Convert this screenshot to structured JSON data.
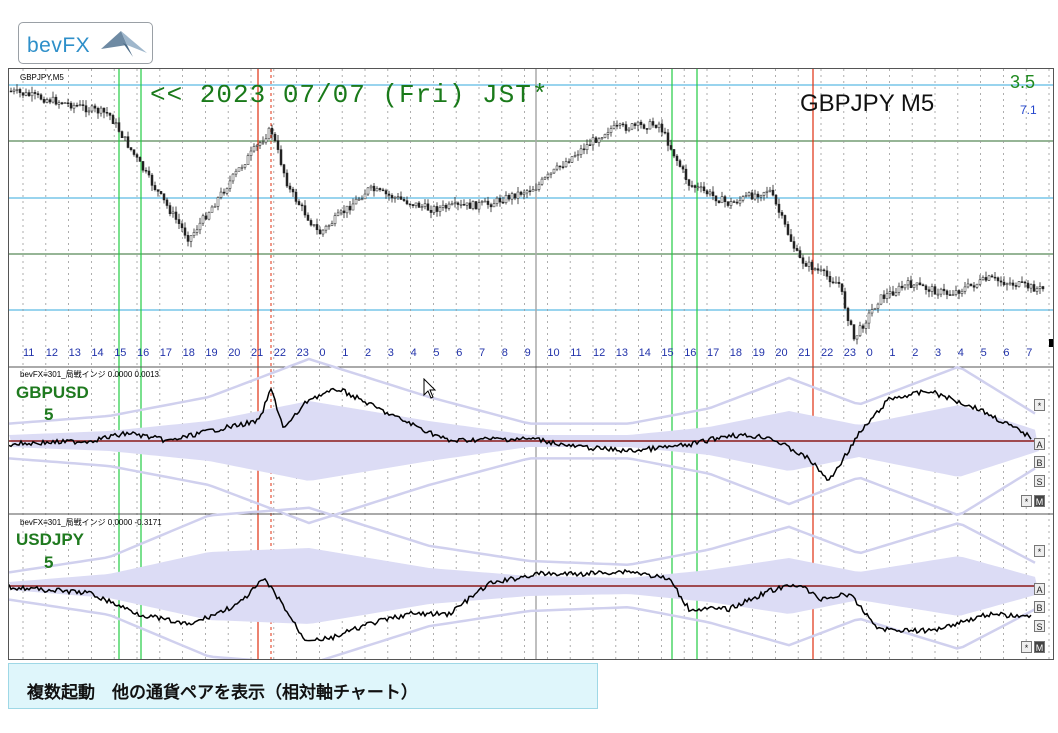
{
  "logo": {
    "text": "bevFX"
  },
  "main_chart": {
    "symbol_label": "GBPJPY,M5",
    "date_banner": "<<  2023 07/07 (Fri) JST*",
    "symbol_big": "GBPJPY  M5",
    "top_value": "3.5",
    "second_value": "7.1",
    "hour_labels": [
      "11",
      "12",
      "13",
      "14",
      "15",
      "16",
      "17",
      "18",
      "19",
      "20",
      "21",
      "22",
      "23",
      "0",
      "1",
      "2",
      "3",
      "4",
      "5",
      "6",
      "7",
      "8",
      "9",
      "10",
      "11",
      "12",
      "13",
      "14",
      "15",
      "16",
      "17",
      "18",
      "19",
      "20",
      "21",
      "22",
      "23",
      "0",
      "1",
      "2",
      "3",
      "4",
      "5",
      "6",
      "7"
    ]
  },
  "sub_pane_1": {
    "header": "bevFX≡301_局戦インジ 0.0000 0.0013",
    "pair": "GBPUSD",
    "period": "5",
    "buttons": [
      "*",
      "A",
      "B",
      "S",
      "*",
      "M"
    ]
  },
  "sub_pane_2": {
    "header": "bevFX≡301_局戦インジ 0.0000 -0.3171",
    "pair": "USDJPY",
    "period": "5",
    "buttons": [
      "*",
      "A",
      "B",
      "S",
      "*",
      "M"
    ]
  },
  "caption": {
    "text": "複数起動　他の通貨ペアを表示（相対軸チャート）"
  },
  "colors": {
    "candle": "#222222",
    "indicator_line": "#000000",
    "zero_line": "#8b1a1a",
    "band_fill": "#dcdcf5",
    "band_line": "#d0d0ee",
    "grid_cyan": "#33aadd",
    "grid_green": "#2e6b2e",
    "vline_green": "#22cc44",
    "vline_red": "#e03010",
    "pair_label": "#1f7a1f",
    "caption_bg": "#dff6fb"
  }
}
